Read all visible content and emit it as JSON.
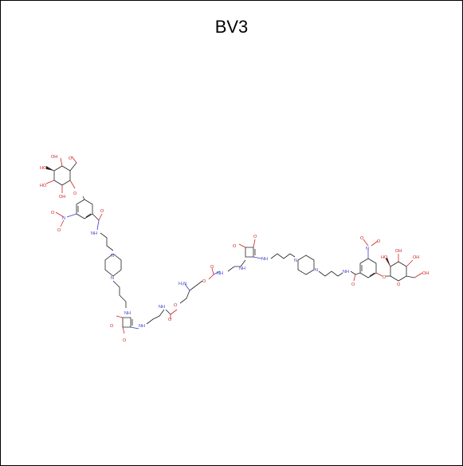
{
  "title": "BV3",
  "labels": {
    "oh": "OH",
    "ho": "HO",
    "o": "O",
    "nh": "NH",
    "n": "N",
    "h2n": "H₂N",
    "no2_n": "N",
    "no2_o": "O"
  }
}
